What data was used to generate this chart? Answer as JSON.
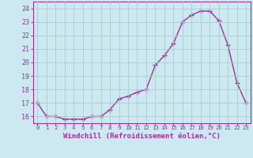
{
  "x": [
    0,
    1,
    2,
    3,
    4,
    5,
    6,
    7,
    8,
    9,
    10,
    11,
    12,
    13,
    14,
    15,
    16,
    17,
    18,
    19,
    20,
    21,
    22,
    23
  ],
  "y": [
    17.0,
    16.0,
    16.0,
    15.8,
    15.8,
    15.8,
    16.0,
    16.0,
    16.5,
    17.3,
    17.5,
    17.8,
    18.0,
    19.8,
    20.5,
    21.4,
    23.0,
    23.5,
    23.8,
    23.8,
    23.1,
    21.3,
    18.5,
    17.0
  ],
  "line_color": "#993399",
  "marker": "+",
  "marker_size": 4,
  "marker_lw": 1.0,
  "bg_color": "#cce8f0",
  "grid_color": "#aacccc",
  "xlabel": "Windchill (Refroidissement éolien,°C)",
  "xlabel_color": "#993399",
  "tick_color": "#993399",
  "label_color": "#993399",
  "ylim": [
    15.5,
    24.5
  ],
  "xlim": [
    -0.5,
    23.5
  ],
  "yticks": [
    16,
    17,
    18,
    19,
    20,
    21,
    22,
    23,
    24
  ],
  "xticks": [
    0,
    1,
    2,
    3,
    4,
    5,
    6,
    7,
    8,
    9,
    10,
    11,
    12,
    13,
    14,
    15,
    16,
    17,
    18,
    19,
    20,
    21,
    22,
    23
  ],
  "xtick_fontsize": 5.2,
  "ytick_fontsize": 6.0,
  "xlabel_fontsize": 6.5,
  "linewidth": 1.0,
  "title": ""
}
